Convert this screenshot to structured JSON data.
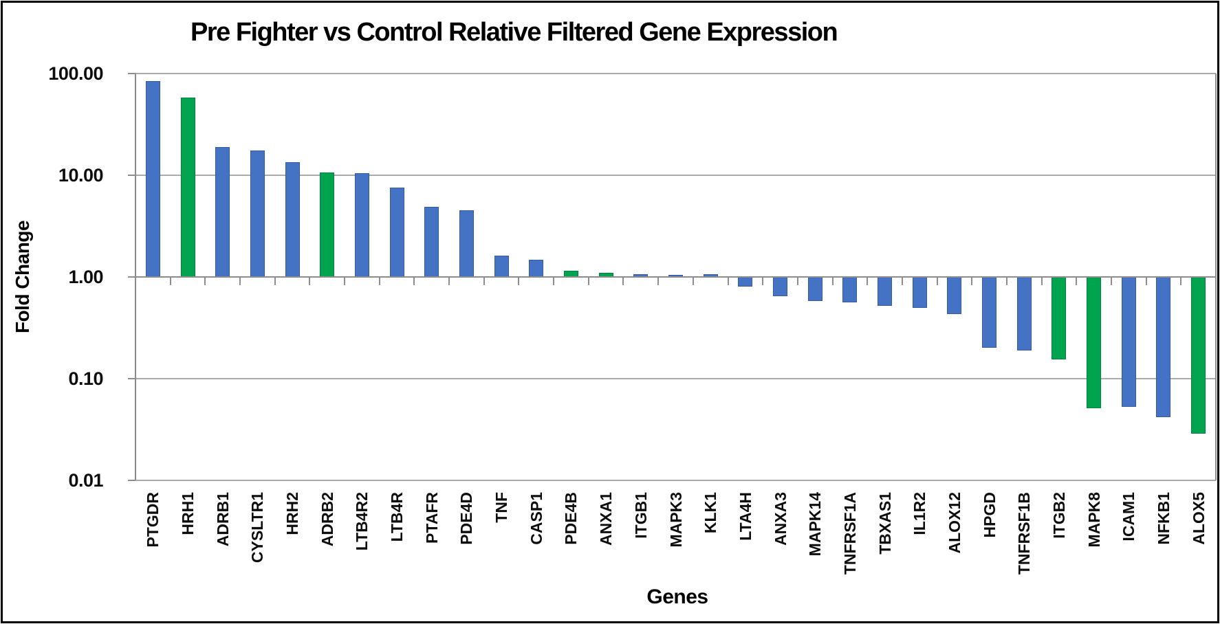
{
  "chart_data": {
    "type": "bar",
    "title": "Pre Fighter vs Control Relative Filtered Gene Expression",
    "xlabel": "Genes",
    "ylabel": "Fold Change",
    "y_scale": "log10",
    "ylim": [
      0.01,
      100
    ],
    "grid": "horizontal gridlines at each decade",
    "legend": "none",
    "baseline_value": 1,
    "colors": {
      "blue": "#4472C4",
      "green": "#00A44F"
    },
    "y_ticks": [
      {
        "value": 100,
        "label": "100.00"
      },
      {
        "value": 10,
        "label": "10.00"
      },
      {
        "value": 1,
        "label": "1.00"
      },
      {
        "value": 0.1,
        "label": "0.10"
      },
      {
        "value": 0.01,
        "label": "0.01"
      }
    ],
    "series": [
      {
        "gene": "PTGDR",
        "fold_change": 84,
        "color": "blue"
      },
      {
        "gene": "HRH1",
        "fold_change": 58,
        "color": "green"
      },
      {
        "gene": "ADRB1",
        "fold_change": 19,
        "color": "blue"
      },
      {
        "gene": "CYSLTR1",
        "fold_change": 17.5,
        "color": "blue"
      },
      {
        "gene": "HRH2",
        "fold_change": 13.5,
        "color": "blue"
      },
      {
        "gene": "ADRB2",
        "fold_change": 10.6,
        "color": "green"
      },
      {
        "gene": "LTB4R2",
        "fold_change": 10.4,
        "color": "blue"
      },
      {
        "gene": "LTB4R",
        "fold_change": 7.5,
        "color": "blue"
      },
      {
        "gene": "PTAFR",
        "fold_change": 4.9,
        "color": "blue"
      },
      {
        "gene": "PDE4D",
        "fold_change": 4.5,
        "color": "blue"
      },
      {
        "gene": "TNF",
        "fold_change": 1.62,
        "color": "blue"
      },
      {
        "gene": "CASP1",
        "fold_change": 1.47,
        "color": "blue"
      },
      {
        "gene": "PDE4B",
        "fold_change": 1.15,
        "color": "green"
      },
      {
        "gene": "ANXA1",
        "fold_change": 1.1,
        "color": "green"
      },
      {
        "gene": "ITGB1",
        "fold_change": 1.06,
        "color": "blue"
      },
      {
        "gene": "MAPK3",
        "fold_change": 1.05,
        "color": "blue"
      },
      {
        "gene": "KLK1",
        "fold_change": 1.06,
        "color": "blue"
      },
      {
        "gene": "LTA4H",
        "fold_change": 0.81,
        "color": "blue"
      },
      {
        "gene": "ANXA3",
        "fold_change": 0.65,
        "color": "blue"
      },
      {
        "gene": "MAPK14",
        "fold_change": 0.58,
        "color": "blue"
      },
      {
        "gene": "TNFRSF1A",
        "fold_change": 0.56,
        "color": "blue"
      },
      {
        "gene": "TBXAS1",
        "fold_change": 0.52,
        "color": "blue"
      },
      {
        "gene": "IL1R2",
        "fold_change": 0.5,
        "color": "blue"
      },
      {
        "gene": "ALOX12",
        "fold_change": 0.43,
        "color": "blue"
      },
      {
        "gene": "HPGD",
        "fold_change": 0.2,
        "color": "blue"
      },
      {
        "gene": "TNFRSF1B",
        "fold_change": 0.19,
        "color": "blue"
      },
      {
        "gene": "ITGB2",
        "fold_change": 0.155,
        "color": "green"
      },
      {
        "gene": "MAPK8",
        "fold_change": 0.051,
        "color": "green"
      },
      {
        "gene": "ICAM1",
        "fold_change": 0.053,
        "color": "blue"
      },
      {
        "gene": "NFKB1",
        "fold_change": 0.042,
        "color": "blue"
      },
      {
        "gene": "ALOX5",
        "fold_change": 0.029,
        "color": "green"
      }
    ]
  }
}
